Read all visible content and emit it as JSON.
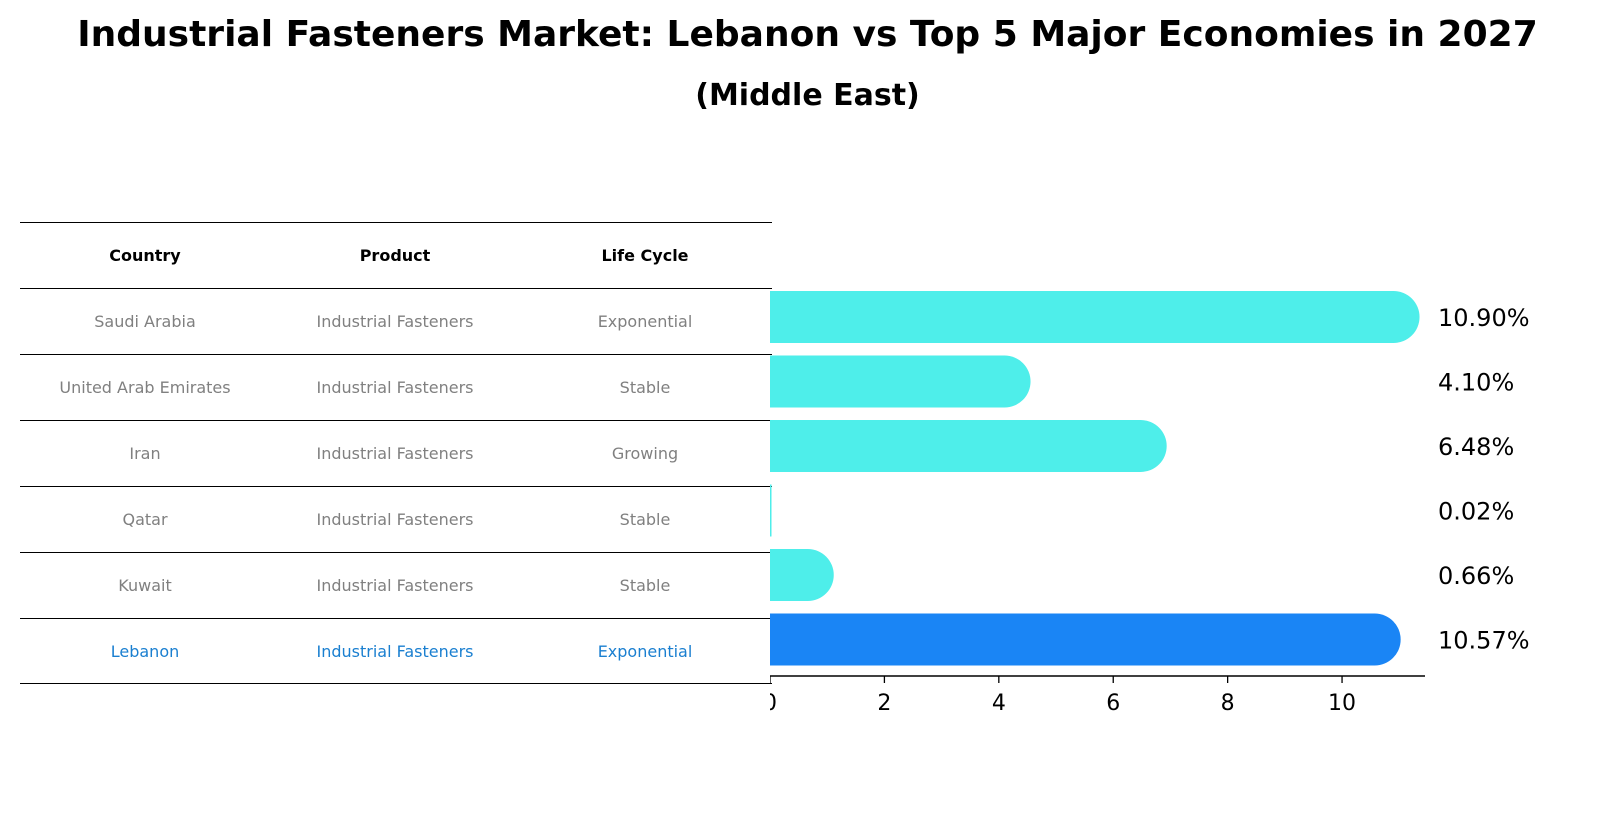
{
  "title": "Industrial Fasteners Market: Lebanon vs Top 5 Major Economies in 2027",
  "subtitle": "(Middle East)",
  "table": {
    "headers": [
      "Country",
      "Product",
      "Life Cycle"
    ],
    "rows": [
      [
        "Saudi Arabia",
        "Industrial Fasteners",
        "Exponential"
      ],
      [
        "United Arab Emirates",
        "Industrial Fasteners",
        "Stable"
      ],
      [
        "Iran",
        "Industrial Fasteners",
        "Growing"
      ],
      [
        "Qatar",
        "Industrial Fasteners",
        "Stable"
      ],
      [
        "Kuwait",
        "Industrial Fasteners",
        "Stable"
      ],
      [
        "Lebanon",
        "Industrial Fasteners",
        "Exponential"
      ]
    ]
  },
  "chart_data": {
    "type": "bar",
    "orientation": "horizontal",
    "categories": [
      "Saudi Arabia",
      "United Arab Emirates",
      "Iran",
      "Qatar",
      "Kuwait",
      "Lebanon"
    ],
    "values": [
      10.9,
      4.1,
      6.48,
      0.02,
      0.66,
      10.57
    ],
    "value_labels": [
      "10.90%",
      "4.10%",
      "6.48%",
      "0.02%",
      "0.66%",
      "10.57%"
    ],
    "highlight": "Lebanon",
    "xlim": [
      0,
      11.45
    ],
    "xticks": [
      0,
      2,
      4,
      6,
      8,
      10
    ],
    "colors": {
      "default": "#4eeeea",
      "highlight": "#1a85f5"
    }
  }
}
